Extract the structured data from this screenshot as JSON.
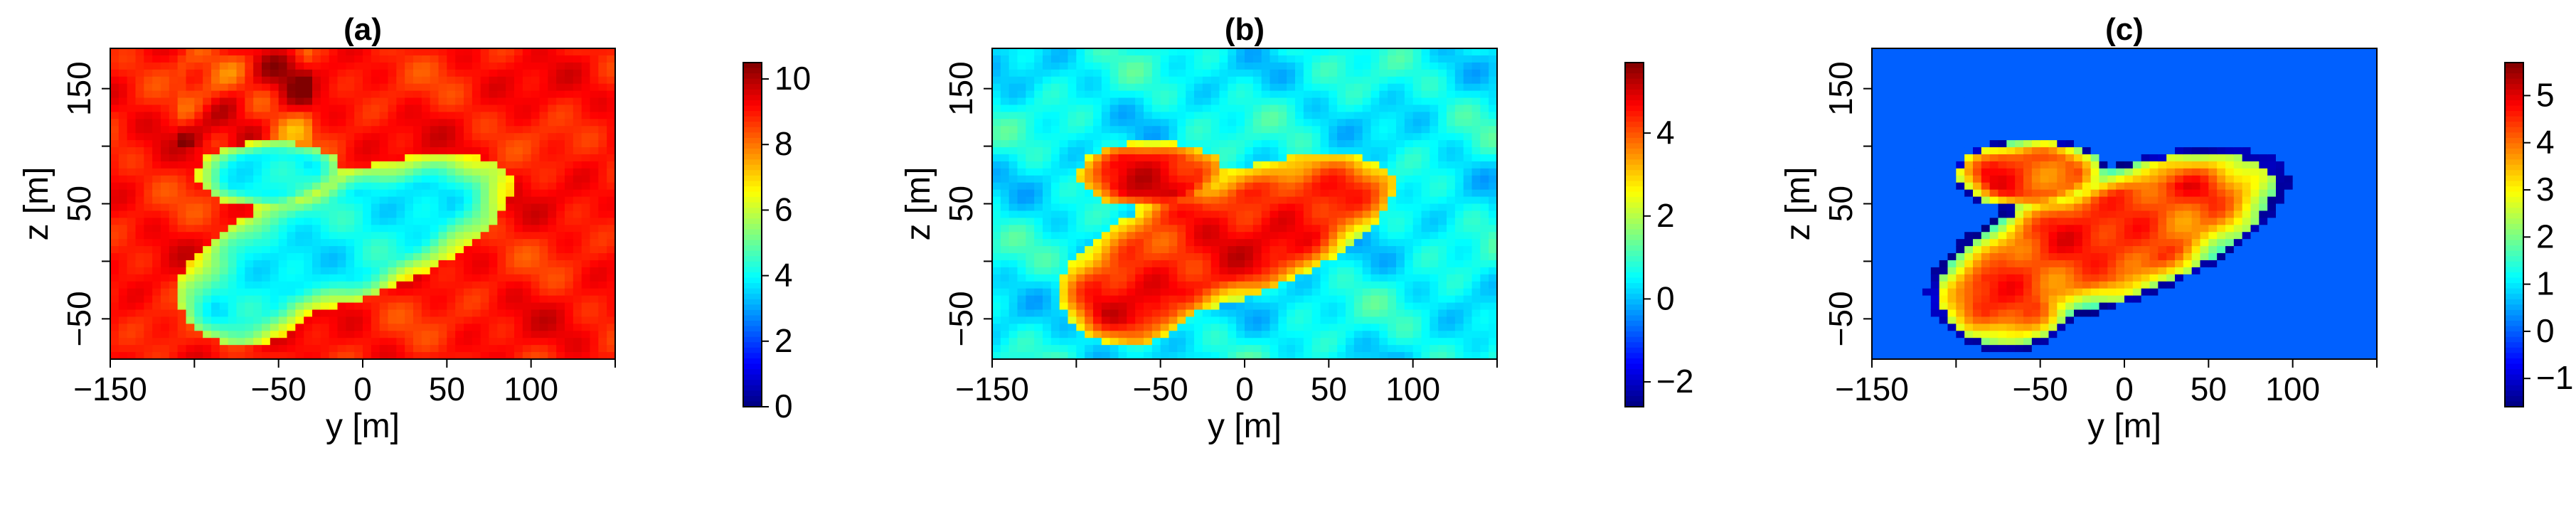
{
  "chart_data": [
    {
      "type": "heatmap",
      "panel_label": "(a)",
      "xlabel": "y [m]",
      "ylabel": "z [m]",
      "xlim": [
        -150,
        150
      ],
      "ylim": [
        -85,
        185
      ],
      "x_ticks": [
        -150,
        -100,
        -50,
        0,
        50,
        100,
        150
      ],
      "x_tick_labels": [
        "−150",
        "",
        "−50",
        "0",
        "50",
        "100",
        ""
      ],
      "y_ticks": [
        -50,
        0,
        50,
        100,
        150
      ],
      "y_tick_labels": [
        "−50",
        "",
        "50",
        "",
        "150"
      ],
      "colorbar": {
        "min": 0,
        "max": 10.5,
        "ticks": [
          0,
          2,
          4,
          6,
          8,
          10
        ],
        "tick_labels": [
          "0",
          "2",
          "4",
          "6",
          "8",
          "10"
        ]
      },
      "field": {
        "background": 9.0,
        "wake_level": 4.0,
        "rim": 6.5,
        "mask_outside_wake": false
      }
    },
    {
      "type": "heatmap",
      "panel_label": "(b)",
      "xlabel": "y [m]",
      "ylabel": "z [m]",
      "xlim": [
        -150,
        150
      ],
      "ylim": [
        -85,
        185
      ],
      "x_ticks": [
        -150,
        -100,
        -50,
        0,
        50,
        100,
        150
      ],
      "x_tick_labels": [
        "−150",
        "",
        "−50",
        "0",
        "50",
        "100",
        ""
      ],
      "y_ticks": [
        -50,
        0,
        50,
        100,
        150
      ],
      "y_tick_labels": [
        "−50",
        "",
        "50",
        "",
        "150"
      ],
      "colorbar": {
        "min": -2.6,
        "max": 5.7,
        "ticks": [
          -2,
          0,
          2,
          4
        ],
        "tick_labels": [
          "−2",
          "0",
          "2",
          "4"
        ]
      },
      "field": {
        "background": 0.5,
        "wake_level": 4.5,
        "rim": 2.5,
        "mask_outside_wake": false
      }
    },
    {
      "type": "heatmap",
      "panel_label": "(c)",
      "xlabel": "y [m]",
      "ylabel": "z [m]",
      "xlim": [
        -150,
        150
      ],
      "ylim": [
        -85,
        185
      ],
      "x_ticks": [
        -150,
        -100,
        -50,
        0,
        50,
        100,
        150
      ],
      "x_tick_labels": [
        "−150",
        "",
        "−50",
        "0",
        "50",
        "100",
        ""
      ],
      "y_ticks": [
        -50,
        0,
        50,
        100,
        150
      ],
      "y_tick_labels": [
        "−50",
        "",
        "50",
        "",
        "150"
      ],
      "colorbar": {
        "min": -1.6,
        "max": 5.7,
        "ticks": [
          -1,
          0,
          1,
          2,
          3,
          4,
          5
        ],
        "tick_labels": [
          "−1",
          "0",
          "1",
          "2",
          "3",
          "4",
          "5"
        ]
      },
      "field": {
        "background": 0.0,
        "wake_level": 4.3,
        "rim": 2.0,
        "mask_outside_wake": true,
        "outer_ring": -1.3
      }
    }
  ]
}
